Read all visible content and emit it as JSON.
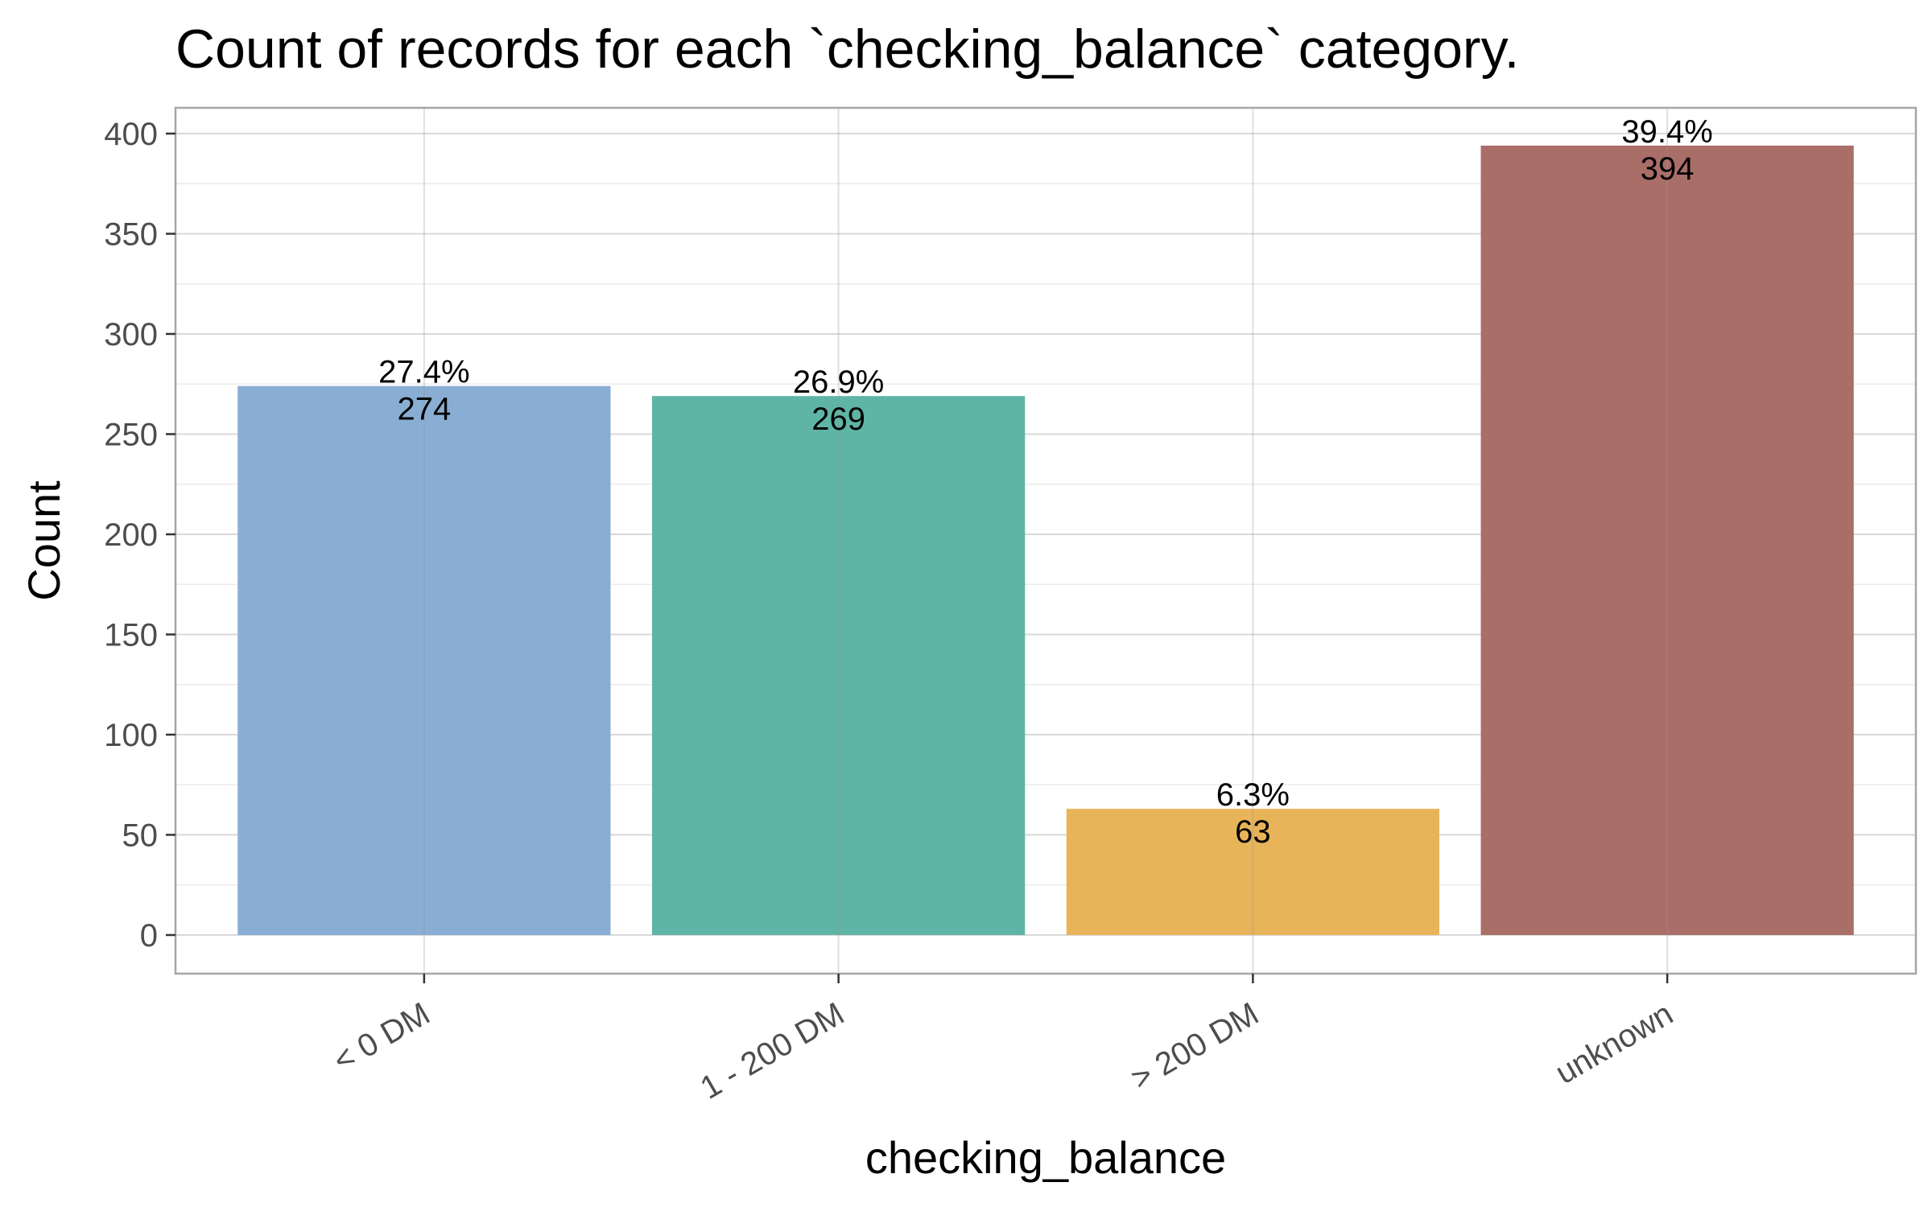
{
  "chart_data": {
    "type": "bar",
    "title": "Count of records for each `checking_balance` category.",
    "xlabel": "checking_balance",
    "ylabel": "Count",
    "categories": [
      "< 0 DM",
      "1 - 200 DM",
      "> 200 DM",
      "unknown"
    ],
    "values": [
      274,
      269,
      63,
      394
    ],
    "percent_labels": [
      "27.4%",
      "26.9%",
      "6.3%",
      "39.4%"
    ],
    "count_labels": [
      "274",
      "269",
      "63",
      "394"
    ],
    "colors": [
      "#8aaed3",
      "#5fb5a5",
      "#e8b45a",
      "#aa6e69"
    ],
    "ylim": [
      -20,
      418
    ],
    "yticks": [
      0,
      50,
      100,
      150,
      200,
      250,
      300,
      350,
      400
    ],
    "grid": true,
    "legend": "none"
  }
}
